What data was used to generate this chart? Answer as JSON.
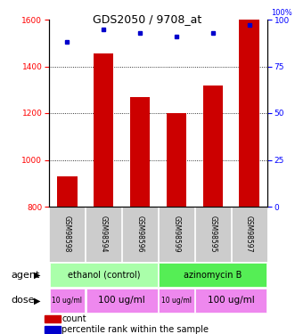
{
  "title": "GDS2050 / 9708_at",
  "samples": [
    "GSM98598",
    "GSM98594",
    "GSM98596",
    "GSM98599",
    "GSM98595",
    "GSM98597"
  ],
  "counts": [
    930,
    1455,
    1270,
    1200,
    1320,
    1600
  ],
  "percentiles": [
    88,
    95,
    93,
    91,
    93,
    97
  ],
  "ylim_left": [
    800,
    1600
  ],
  "ylim_right": [
    0,
    100
  ],
  "yticks_left": [
    800,
    1000,
    1200,
    1400,
    1600
  ],
  "yticks_right": [
    0,
    25,
    50,
    75,
    100
  ],
  "bar_color": "#cc0000",
  "dot_color": "#0000cc",
  "agent_groups": [
    {
      "label": "ethanol (control)",
      "start": 0,
      "end": 3,
      "color": "#aaffaa"
    },
    {
      "label": "azinomycin B",
      "start": 3,
      "end": 6,
      "color": "#55ee55"
    }
  ],
  "dose_groups": [
    {
      "label": "10 ug/ml",
      "start": 0,
      "end": 1,
      "fontsize": 5.5
    },
    {
      "label": "100 ug/ml",
      "start": 1,
      "end": 3,
      "fontsize": 7.5
    },
    {
      "label": "10 ug/ml",
      "start": 3,
      "end": 4,
      "fontsize": 5.5
    },
    {
      "label": "100 ug/ml",
      "start": 4,
      "end": 6,
      "fontsize": 7.5
    }
  ],
  "dose_color": "#ee88ee",
  "bg_color": "#cccccc",
  "grid_color": "#000000"
}
